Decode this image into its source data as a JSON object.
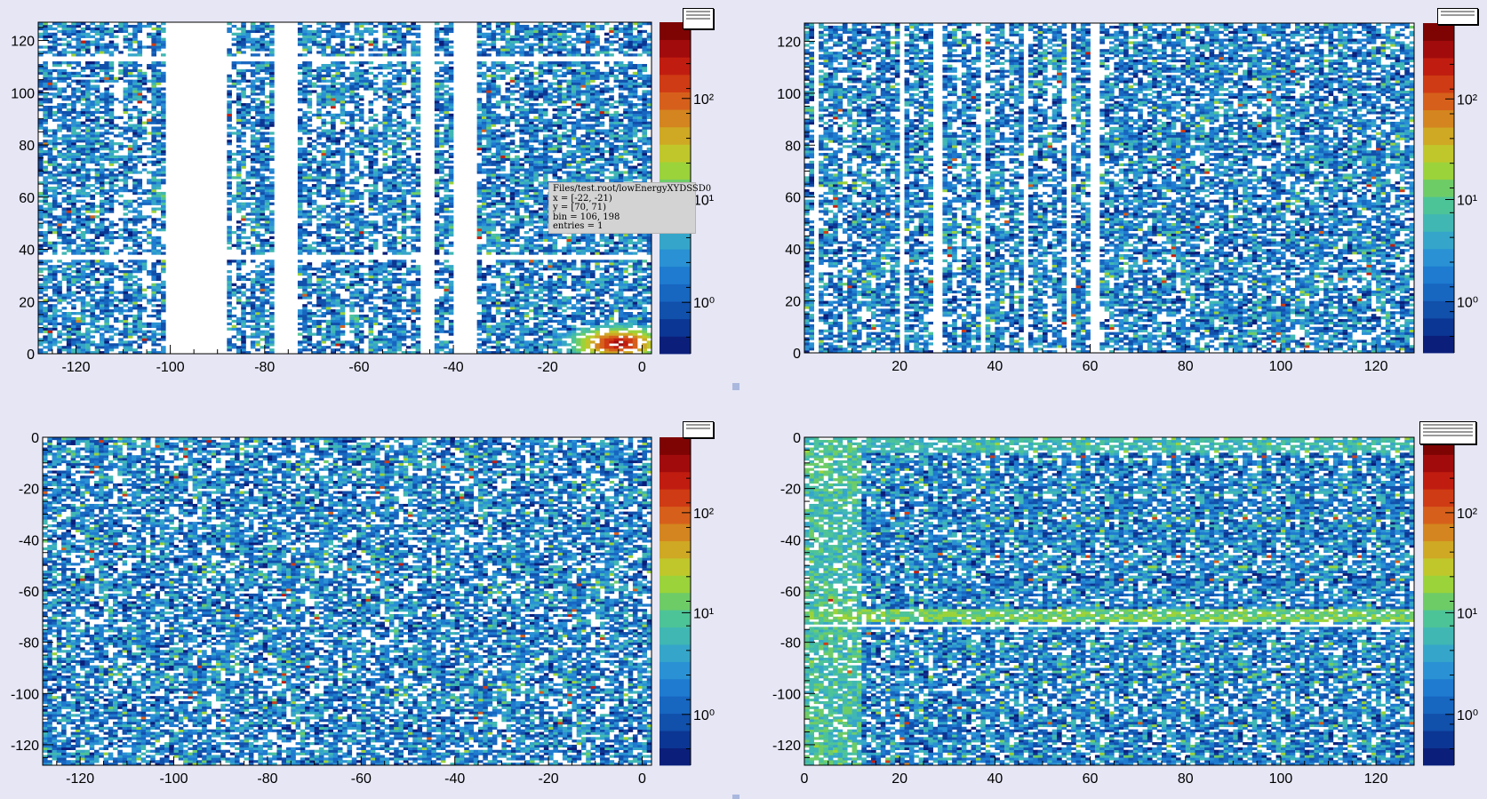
{
  "tooltip": {
    "line1": "Files/test.root/lowEnergyXYDSSD0",
    "line2": "x = [-22, -21)",
    "line3": "y = [70, 71)",
    "line4": "bin = 106, 198",
    "line5": "entries = 1"
  },
  "colorbar": {
    "palette": [
      "#0b1f7a",
      "#0c3693",
      "#1150ab",
      "#1766c0",
      "#1e7bcf",
      "#2a91d4",
      "#35a6c9",
      "#40b7b3",
      "#4dc398",
      "#6ecc67",
      "#9bd33a",
      "#c0c72a",
      "#cfa824",
      "#d4851f",
      "#d6601b",
      "#cf3b14",
      "#c01d10",
      "#a10b0b",
      "#7e0404"
    ],
    "labels": [
      {
        "text": "10⁰",
        "frac": 0.155
      },
      {
        "text": "10¹",
        "frac": 0.465
      },
      {
        "text": "10²",
        "frac": 0.77
      }
    ]
  },
  "chart_data": [
    {
      "type": "heatmap",
      "title": "",
      "xlabel": "",
      "ylabel": "",
      "xlim": [
        -128,
        2
      ],
      "ylim": [
        0,
        127
      ],
      "xticks": [
        -120,
        -100,
        -80,
        -60,
        -40,
        -20,
        0
      ],
      "yticks": [
        0,
        20,
        40,
        60,
        80,
        100,
        120
      ],
      "z_scale": "log",
      "empty_x_bands": [
        [
          -101,
          -88
        ],
        [
          -78,
          -73
        ],
        [
          -47,
          -44
        ],
        [
          -40,
          -35
        ]
      ],
      "sparse_x_bands": [
        [
          -112,
          -110
        ],
        [
          -106,
          -104
        ],
        [
          -87,
          -86
        ],
        [
          -84,
          -83
        ],
        [
          -70,
          -69
        ],
        [
          -63,
          -62
        ],
        [
          -59,
          -58
        ],
        [
          -56,
          -55
        ],
        [
          -50,
          -49
        ]
      ],
      "empty_y_bands": [
        [
          36,
          38
        ],
        [
          112,
          114
        ]
      ],
      "hotspot": {
        "x": -5,
        "y": 4,
        "level": "high"
      }
    },
    {
      "type": "heatmap",
      "title": "",
      "xlabel": "",
      "ylabel": "",
      "xlim": [
        0,
        128
      ],
      "ylim": [
        0,
        127
      ],
      "xticks": [
        20,
        40,
        60,
        80,
        100,
        120
      ],
      "yticks": [
        0,
        20,
        40,
        60,
        80,
        100,
        120
      ],
      "z_scale": "log",
      "empty_x_bands": [
        [
          2,
          3
        ],
        [
          20,
          21
        ],
        [
          27,
          29
        ],
        [
          37,
          38
        ],
        [
          46,
          47
        ],
        [
          55,
          56
        ],
        [
          60,
          62
        ]
      ],
      "sparse_x_bands": [
        [
          8,
          9
        ],
        [
          32,
          33
        ],
        [
          42,
          43
        ],
        [
          51,
          52
        ]
      ],
      "empty_y_bands": [],
      "hotspot": null
    },
    {
      "type": "heatmap",
      "title": "",
      "xlabel": "",
      "ylabel": "",
      "xlim": [
        -128,
        2
      ],
      "ylim": [
        -128,
        0
      ],
      "xticks": [
        -120,
        -100,
        -80,
        -60,
        -40,
        -20,
        0
      ],
      "yticks": [
        0,
        -20,
        -40,
        -60,
        -80,
        -100,
        -120
      ],
      "z_scale": "log",
      "empty_x_bands": [],
      "sparse_x_bands": [],
      "empty_y_bands": [],
      "hotspot": null
    },
    {
      "type": "heatmap",
      "title": "",
      "xlabel": "",
      "ylabel": "",
      "xlim": [
        0,
        128
      ],
      "ylim": [
        -128,
        0
      ],
      "xticks": [
        0,
        20,
        40,
        60,
        80,
        100,
        120
      ],
      "yticks": [
        0,
        -20,
        -40,
        -60,
        -80,
        -100,
        -120
      ],
      "z_scale": "log",
      "empty_x_bands": [],
      "sparse_x_bands": [],
      "empty_y_bands": [
        [
          -74,
          -73
        ]
      ],
      "hot_y_band": [
        -72,
        -67
      ],
      "hot_x_edge": [
        0,
        12
      ],
      "hot_y_edge": [
        -6,
        0
      ],
      "hotspot": null
    }
  ]
}
